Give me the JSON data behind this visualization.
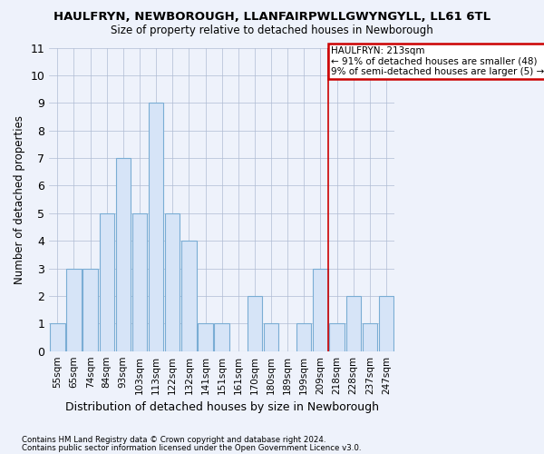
{
  "title": "HAULFRYN, NEWBOROUGH, LLANFAIRPWLLGWYNGYLL, LL61 6TL",
  "subtitle": "Size of property relative to detached houses in Newborough",
  "xlabel": "Distribution of detached houses by size in Newborough",
  "ylabel": "Number of detached properties",
  "categories": [
    "55sqm",
    "65sqm",
    "74sqm",
    "84sqm",
    "93sqm",
    "103sqm",
    "113sqm",
    "122sqm",
    "132sqm",
    "141sqm",
    "151sqm",
    "161sqm",
    "170sqm",
    "180sqm",
    "189sqm",
    "199sqm",
    "209sqm",
    "218sqm",
    "228sqm",
    "237sqm",
    "247sqm"
  ],
  "values": [
    1,
    3,
    3,
    5,
    7,
    5,
    9,
    5,
    4,
    1,
    1,
    0,
    2,
    1,
    0,
    1,
    3,
    1,
    2,
    1,
    2
  ],
  "bar_color": "#d6e4f7",
  "bar_edge_color": "#7aadd4",
  "ylim": [
    0,
    11
  ],
  "yticks": [
    0,
    1,
    2,
    3,
    4,
    5,
    6,
    7,
    8,
    9,
    10,
    11
  ],
  "vline_x": 16.5,
  "vline_color": "#cc0000",
  "annotation_title": "HAULFRYN: 213sqm",
  "annotation_line1": "← 91% of detached houses are smaller (48)",
  "annotation_line2": "9% of semi-detached houses are larger (5) →",
  "annotation_box_color": "#ffffff",
  "annotation_box_edge": "#cc0000",
  "footer1": "Contains HM Land Registry data © Crown copyright and database right 2024.",
  "footer2": "Contains public sector information licensed under the Open Government Licence v3.0.",
  "background_color": "#eef2fb",
  "grid_color": "#b0bcd4"
}
